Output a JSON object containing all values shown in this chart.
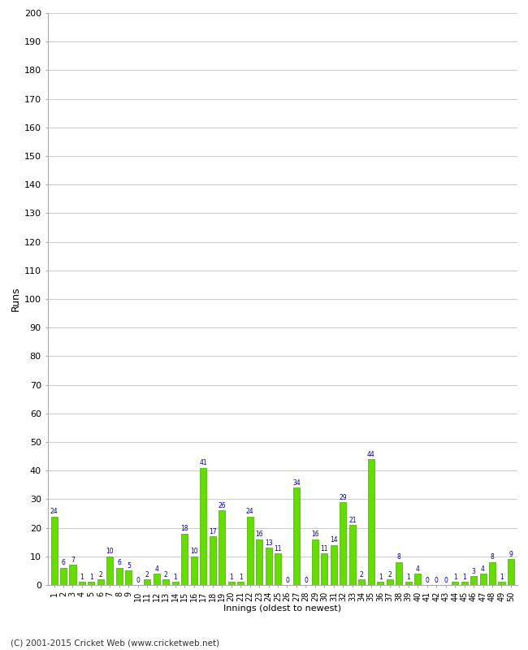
{
  "values": [
    24,
    6,
    7,
    1,
    1,
    2,
    10,
    6,
    5,
    0,
    2,
    4,
    2,
    1,
    18,
    10,
    41,
    17,
    26,
    1,
    1,
    24,
    16,
    13,
    11,
    0,
    34,
    0,
    16,
    11,
    14,
    29,
    21,
    2,
    44,
    1,
    2,
    8,
    1,
    4,
    0,
    0,
    0,
    1,
    1,
    3,
    4,
    8,
    1,
    9
  ],
  "bar_color": "#66dd00",
  "bar_edge_color": "#44aa00",
  "text_color": "#000099",
  "ylabel": "Runs",
  "xlabel": "Innings (oldest to newest)",
  "ylim": [
    0,
    200
  ],
  "yticks": [
    0,
    10,
    20,
    30,
    40,
    50,
    60,
    70,
    80,
    90,
    100,
    110,
    120,
    130,
    140,
    150,
    160,
    170,
    180,
    190,
    200
  ],
  "footer": "(C) 2001-2015 Cricket Web (www.cricketweb.net)",
  "background_color": "#ffffff",
  "grid_color": "#cccccc"
}
